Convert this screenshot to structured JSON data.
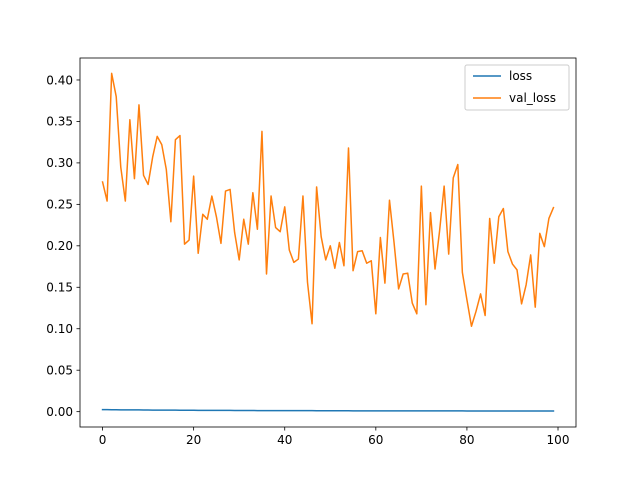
{
  "chart_data": {
    "type": "line",
    "title": "",
    "xlabel": "",
    "ylabel": "",
    "xlim": [
      -4.95,
      103.95
    ],
    "ylim": [
      -0.0185,
      0.4265
    ],
    "xticks": [
      0,
      20,
      40,
      60,
      80,
      100
    ],
    "yticks": [
      0.0,
      0.05,
      0.1,
      0.15,
      0.2,
      0.25,
      0.3,
      0.35,
      0.4
    ],
    "ytick_labels": [
      "0.00",
      "0.05",
      "0.10",
      "0.15",
      "0.20",
      "0.25",
      "0.30",
      "0.35",
      "0.40"
    ],
    "grid": false,
    "legend_position": "upper-right",
    "series": [
      {
        "name": "loss",
        "color": "#1f77b4",
        "values": [
          0.0025,
          0.0024,
          0.0023,
          0.0023,
          0.0022,
          0.0022,
          0.0021,
          0.0021,
          0.0021,
          0.002,
          0.002,
          0.0019,
          0.0019,
          0.0019,
          0.0018,
          0.0018,
          0.0018,
          0.0017,
          0.0017,
          0.0017,
          0.0017,
          0.0016,
          0.0016,
          0.0016,
          0.0016,
          0.0015,
          0.0015,
          0.0015,
          0.0015,
          0.0014,
          0.0014,
          0.0014,
          0.0014,
          0.0014,
          0.0013,
          0.0013,
          0.0013,
          0.0013,
          0.0013,
          0.0013,
          0.0012,
          0.0012,
          0.0012,
          0.0012,
          0.0012,
          0.0012,
          0.0012,
          0.0011,
          0.0011,
          0.0011,
          0.0011,
          0.0011,
          0.0011,
          0.0011,
          0.0011,
          0.001,
          0.001,
          0.001,
          0.001,
          0.001,
          0.001,
          0.001,
          0.001,
          0.001,
          0.001,
          0.001,
          0.0009,
          0.0009,
          0.0009,
          0.0009,
          0.0009,
          0.0009,
          0.0009,
          0.0009,
          0.0009,
          0.0009,
          0.0009,
          0.0009,
          0.0009,
          0.0009,
          0.0008,
          0.0008,
          0.0008,
          0.0008,
          0.0008,
          0.0008,
          0.0008,
          0.0008,
          0.0008,
          0.0008,
          0.0008,
          0.0008,
          0.0008,
          0.0008,
          0.0008,
          0.0008,
          0.0008,
          0.0008,
          0.0008,
          0.0008
        ]
      },
      {
        "name": "val_loss",
        "color": "#ff7f0e",
        "values": [
          0.277,
          0.254,
          0.408,
          0.38,
          0.295,
          0.254,
          0.352,
          0.281,
          0.37,
          0.285,
          0.274,
          0.307,
          0.332,
          0.322,
          0.292,
          0.229,
          0.328,
          0.333,
          0.202,
          0.207,
          0.284,
          0.191,
          0.238,
          0.232,
          0.26,
          0.235,
          0.203,
          0.266,
          0.268,
          0.216,
          0.183,
          0.232,
          0.202,
          0.264,
          0.22,
          0.338,
          0.166,
          0.26,
          0.222,
          0.217,
          0.247,
          0.195,
          0.18,
          0.184,
          0.26,
          0.156,
          0.106,
          0.271,
          0.211,
          0.183,
          0.2,
          0.173,
          0.204,
          0.176,
          0.318,
          0.17,
          0.193,
          0.194,
          0.179,
          0.182,
          0.118,
          0.21,
          0.155,
          0.255,
          0.204,
          0.148,
          0.166,
          0.167,
          0.131,
          0.118,
          0.272,
          0.129,
          0.24,
          0.172,
          0.218,
          0.272,
          0.19,
          0.282,
          0.298,
          0.168,
          0.135,
          0.103,
          0.121,
          0.142,
          0.116,
          0.233,
          0.179,
          0.235,
          0.245,
          0.193,
          0.178,
          0.171,
          0.13,
          0.153,
          0.189,
          0.126,
          0.215,
          0.199,
          0.233,
          0.246
        ]
      }
    ]
  }
}
